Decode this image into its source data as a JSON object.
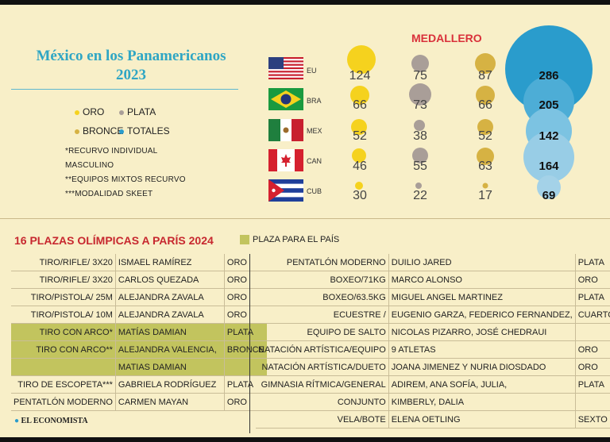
{
  "header": {
    "title_line1": "México en los Panamericanos",
    "title_line2": "2023"
  },
  "legend": {
    "oro": "ORO",
    "plata": "PLATA",
    "bronce": "BRONCE",
    "totales": "TOTALES",
    "colors": {
      "oro": "#f5d21e",
      "plata": "#a99e98",
      "bronce": "#d6b243",
      "totales": "#2a9ccc"
    }
  },
  "notes": [
    "*RECURVO INDIVIDUAL",
    "MASCULINO",
    "**EQUIPOS MIXTOS RECURVO",
    "***MODALIDAD SKEET"
  ],
  "medallero": {
    "title": "MEDALLERO",
    "countries": [
      {
        "code": "EU",
        "flag": "usa-flag",
        "oro": "124",
        "plata": "75",
        "bronce": "87",
        "total": "286"
      },
      {
        "code": "BRA",
        "flag": "brazil-flag",
        "oro": "66",
        "plata": "73",
        "bronce": "66",
        "total": "205"
      },
      {
        "code": "MEX",
        "flag": "mexico-flag",
        "oro": "52",
        "plata": "38",
        "bronce": "52",
        "total": "142"
      },
      {
        "code": "CAN",
        "flag": "canada-flag",
        "oro": "46",
        "plata": "55",
        "bronce": "63",
        "total": "164"
      },
      {
        "code": "CUB",
        "flag": "cuba-flag",
        "oro": "30",
        "plata": "22",
        "bronce": "17",
        "total": "69"
      }
    ]
  },
  "plazas": {
    "title": "16 PLAZAS OLÍMPICAS A PARÍS 2024",
    "legend_label": "PLAZA PARA EL PAÍS",
    "left": [
      {
        "sport": "TIRO/RIFLE/ 3X20",
        "athlete": "ISMAEL RAMÍREZ",
        "result": "ORO"
      },
      {
        "sport": "TIRO/RIFLE/ 3X20",
        "athlete": "CARLOS QUEZADA",
        "result": "ORO"
      },
      {
        "sport": "TIRO/PISTOLA/ 25M",
        "athlete": "ALEJANDRA ZAVALA",
        "result": "ORO"
      },
      {
        "sport": "TIRO/PISTOLA/ 10M",
        "athlete": "ALEJANDRA ZAVALA",
        "result": "ORO"
      },
      {
        "sport": "TIRO CON ARCO*",
        "athlete": "MATÍAS  DAMIAN",
        "result": "PLATA",
        "highlight": true
      },
      {
        "sport": "TIRO CON ARCO**",
        "athlete": "ALEJANDRA VALENCIA,",
        "result": "BRONCE",
        "highlight": true
      },
      {
        "sport": "",
        "athlete": "MATIAS DAMIAN",
        "result": "",
        "highlight": true
      },
      {
        "sport": "TIRO DE ESCOPETA***",
        "athlete": "GABRIELA RODRÍGUEZ",
        "result": "PLATA"
      },
      {
        "sport": "PENTATLÓN MODERNO",
        "athlete": "CARMEN MAYAN",
        "result": "ORO"
      }
    ],
    "right": [
      {
        "sport": "PENTATLÓN MODERNO",
        "athlete": "DUILIO JARED",
        "result": "PLATA"
      },
      {
        "sport": "BOXEO/71KG",
        "athlete": "MARCO ALONSO",
        "result": "ORO"
      },
      {
        "sport": "BOXEO/63.5KG",
        "athlete": "MIGUEL ANGEL MARTINEZ",
        "result": "PLATA"
      },
      {
        "sport": "ECUESTRE /",
        "athlete": "EUGENIO GARZA, FEDERICO FERNANDEZ,",
        "result": "CUARTO LUGAR"
      },
      {
        "sport": "EQUIPO DE SALTO",
        "athlete": "NICOLAS PIZARRO, JOSÉ CHEDRAUI",
        "result": ""
      },
      {
        "sport": "NATACIÓN ARTÍSTICA/EQUIPO",
        "athlete": "9 ATLETAS",
        "result": "ORO"
      },
      {
        "sport": "NATACIÓN ARTÍSTICA/DUETO",
        "athlete": "JOANA JIMENEZ Y NURIA DIOSDADO",
        "result": "ORO"
      },
      {
        "sport": "GIMNASIA RÍTMICA/GENERAL",
        "athlete": "ADIREM, ANA SOFÍA, JULIA,",
        "result": "PLATA"
      },
      {
        "sport": "CONJUNTO",
        "athlete": "KIMBERLY, DALIA",
        "result": ""
      },
      {
        "sport": "VELA/BOTE",
        "athlete": "ELENA OETLING",
        "result": "SEXTO LUGAR"
      }
    ]
  },
  "footer": {
    "logo": "EL ECONOMISTA"
  }
}
